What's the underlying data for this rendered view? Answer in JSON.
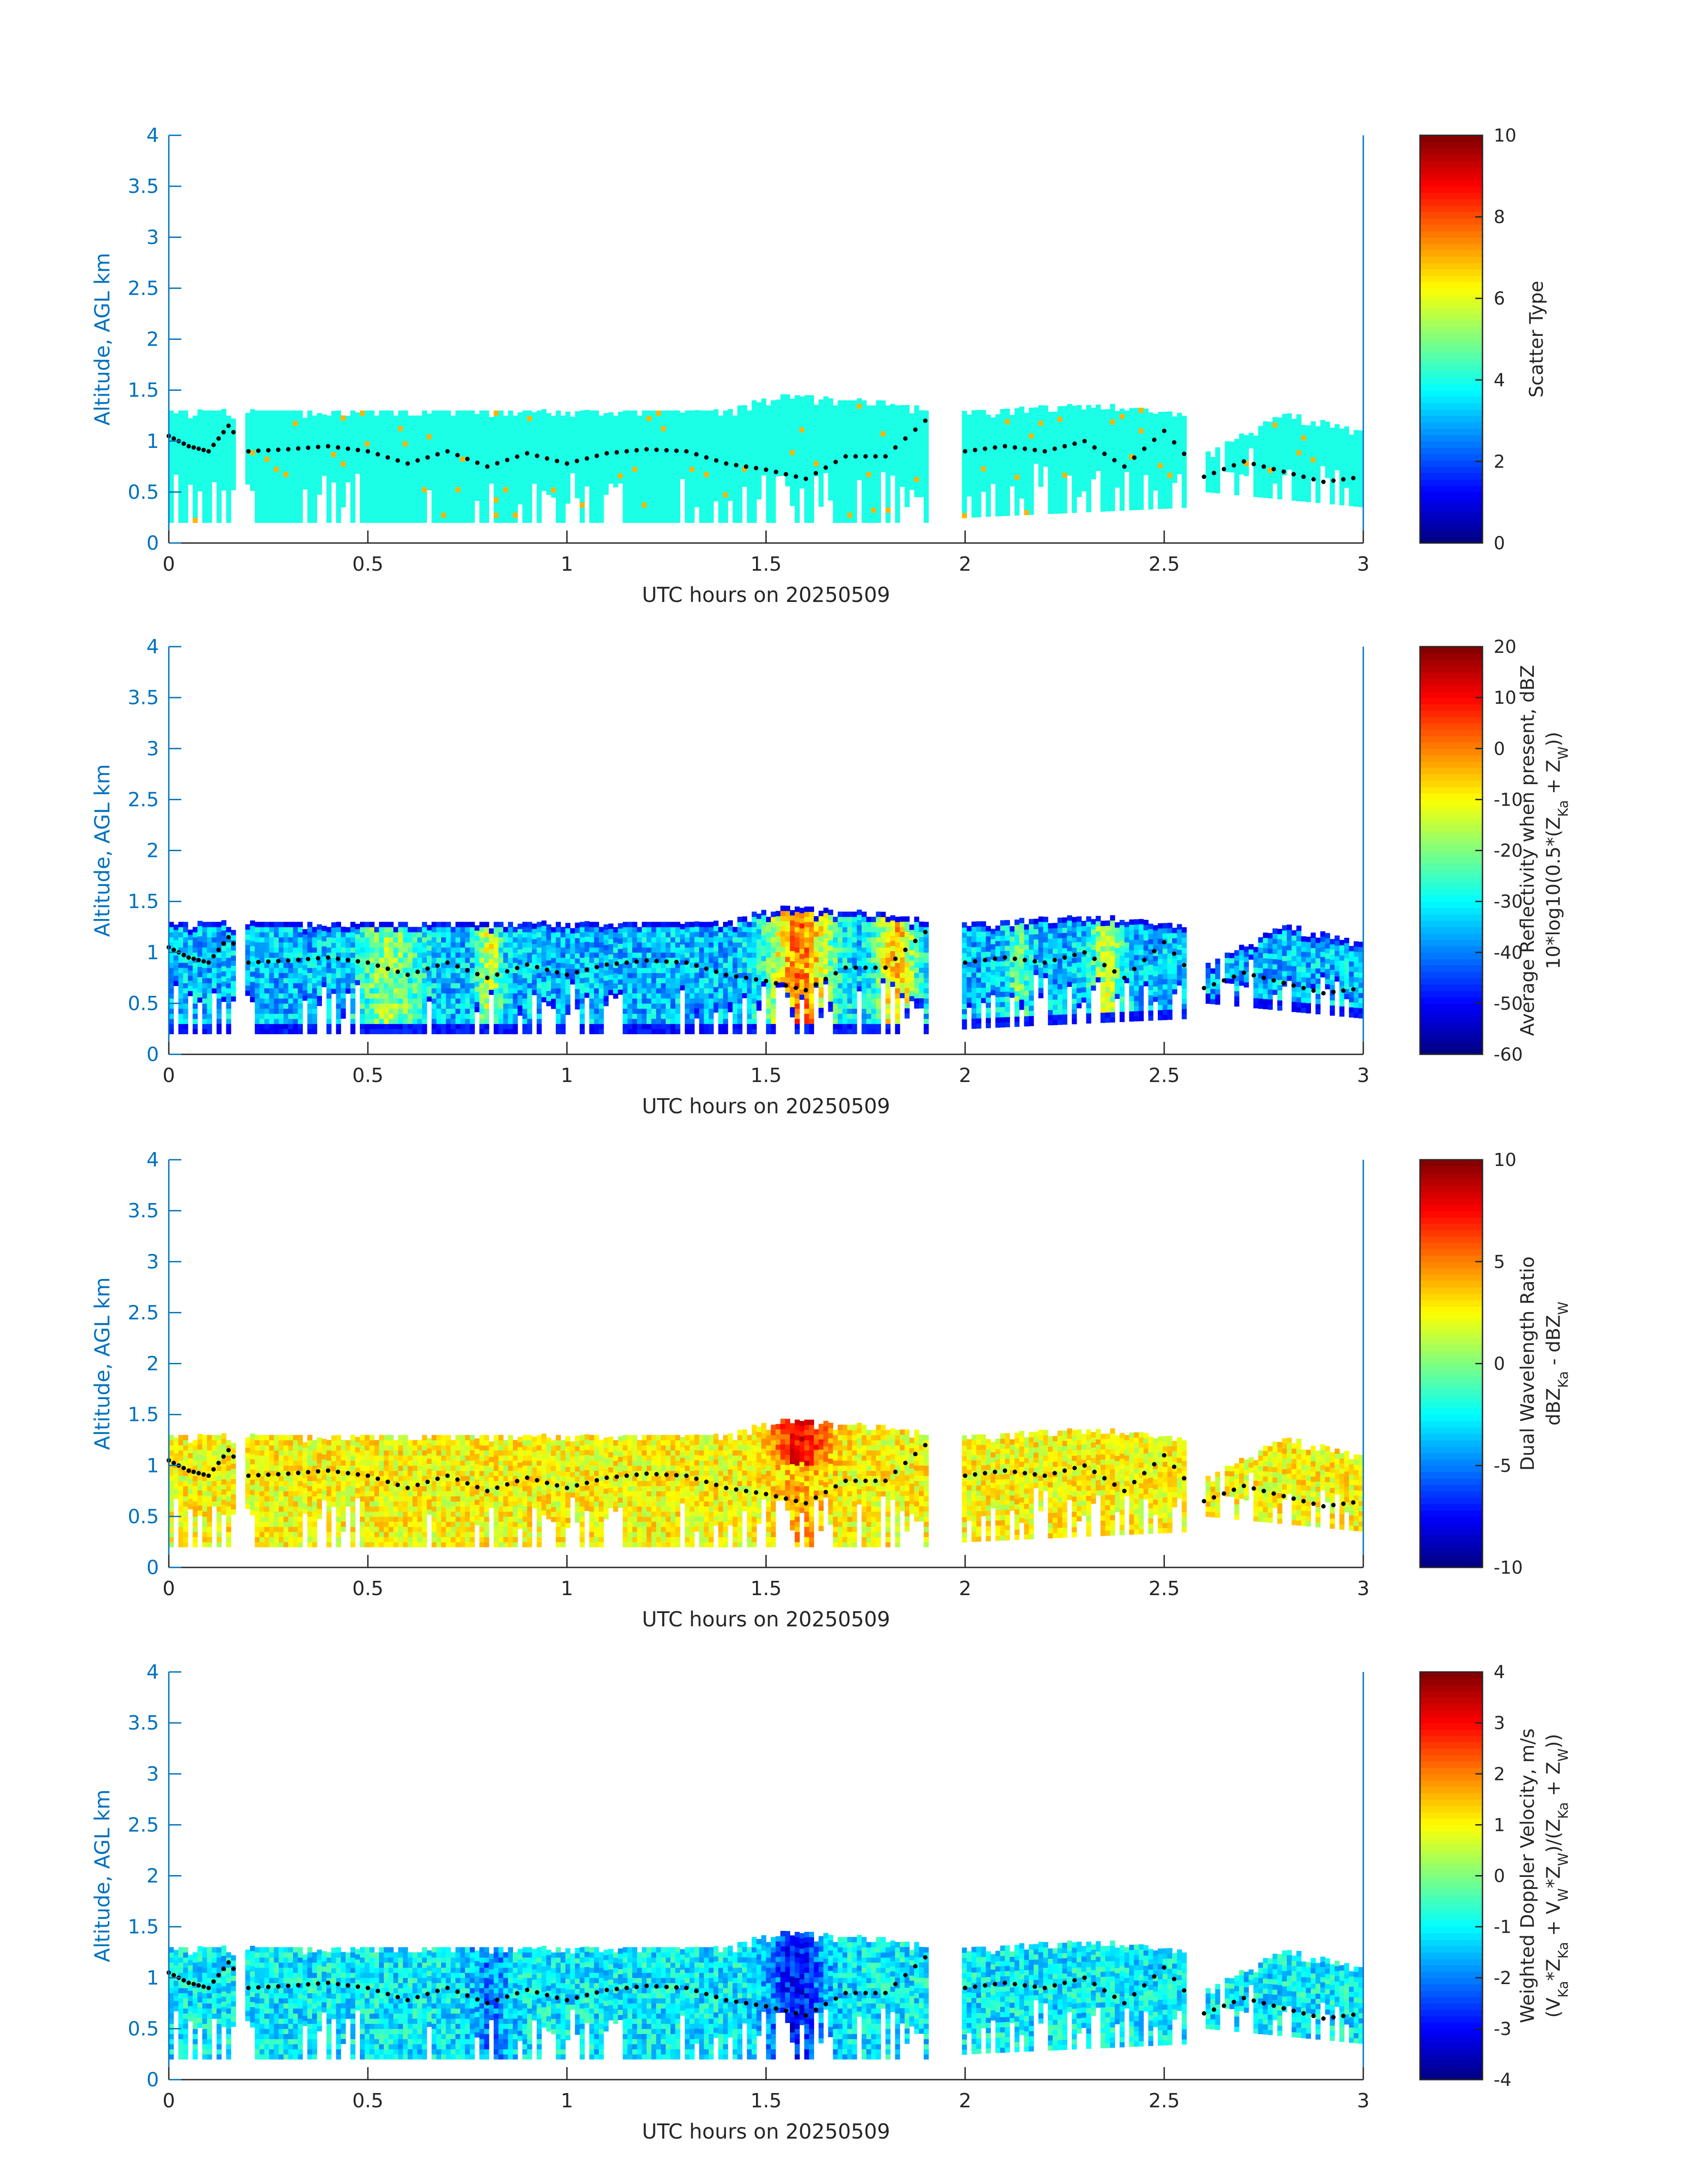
{
  "chart_data": [
    {
      "type": "heatmap",
      "xlabel": "UTC hours on 20250509",
      "ylabel": "Altitude, AGL km",
      "xlim": [
        0,
        3
      ],
      "ylim": [
        0,
        4
      ],
      "xticks": [
        "0",
        "0.5",
        "1",
        "1.5",
        "2",
        "2.5",
        "3"
      ],
      "yticks": [
        "0",
        "0.5",
        "1",
        "1.5",
        "2",
        "2.5",
        "3",
        "3.5",
        "4"
      ],
      "colorbar": {
        "label_lines": [
          "Scatter Type"
        ],
        "range": [
          0,
          10
        ],
        "ticks": [
          "0",
          "2",
          "4",
          "6",
          "8",
          "10"
        ]
      },
      "colormap": "jet",
      "field": "scatter"
    },
    {
      "type": "heatmap",
      "xlabel": "UTC hours on 20250509",
      "ylabel": "Altitude, AGL km",
      "xlim": [
        0,
        3
      ],
      "ylim": [
        0,
        4
      ],
      "xticks": [
        "0",
        "0.5",
        "1",
        "1.5",
        "2",
        "2.5",
        "3"
      ],
      "yticks": [
        "0",
        "0.5",
        "1",
        "1.5",
        "2",
        "2.5",
        "3",
        "3.5",
        "4"
      ],
      "colorbar": {
        "label_lines": [
          "Average Reflectivity when present, dBZ",
          "10*log10(0.5*(Z_Ka + Z_W))"
        ],
        "range": [
          -60,
          20
        ],
        "ticks": [
          "-60",
          "-50",
          "-40",
          "-30",
          "-20",
          "-10",
          "0",
          "10",
          "20"
        ]
      },
      "colormap": "jet",
      "field": "reflectivity"
    },
    {
      "type": "heatmap",
      "xlabel": "UTC hours on 20250509",
      "ylabel": "Altitude, AGL km",
      "xlim": [
        0,
        3
      ],
      "ylim": [
        0,
        4
      ],
      "xticks": [
        "0",
        "0.5",
        "1",
        "1.5",
        "2",
        "2.5",
        "3"
      ],
      "yticks": [
        "0",
        "0.5",
        "1",
        "1.5",
        "2",
        "2.5",
        "3",
        "3.5",
        "4"
      ],
      "colorbar": {
        "label_lines": [
          "Dual Wavelength Ratio",
          "dBZ_Ka - dBZ_W"
        ],
        "range": [
          -10,
          10
        ],
        "ticks": [
          "-10",
          "-5",
          "0",
          "5",
          "10"
        ]
      },
      "colormap": "jet",
      "field": "dwr"
    },
    {
      "type": "heatmap",
      "xlabel": "UTC hours on 20250509",
      "ylabel": "Altitude, AGL km",
      "xlim": [
        0,
        3
      ],
      "ylim": [
        0,
        4
      ],
      "xticks": [
        "0",
        "0.5",
        "1",
        "1.5",
        "2",
        "2.5",
        "3"
      ],
      "yticks": [
        "0",
        "0.5",
        "1",
        "1.5",
        "2",
        "2.5",
        "3",
        "3.5",
        "4"
      ],
      "colorbar": {
        "label_lines": [
          "Weighted Doppler Velocity, m/s",
          "(V_Ka*Z_Ka + V_W*Z_W)/(Z_Ka + Z_W))"
        ],
        "range": [
          -4,
          4
        ],
        "ticks": [
          "-4",
          "-3",
          "-2",
          "-1",
          "0",
          "1",
          "2",
          "3",
          "4"
        ]
      },
      "colormap": "jet",
      "field": "velocity"
    }
  ],
  "cloud_layer": {
    "segments": [
      [
        0,
        0.17
      ],
      [
        0.19,
        1.91
      ],
      [
        1.99,
        2.56
      ],
      [
        2.6,
        3.0
      ]
    ],
    "top_km": [
      [
        0,
        1.27
      ],
      [
        0.5,
        1.27
      ],
      [
        1.0,
        1.27
      ],
      [
        1.4,
        1.27
      ],
      [
        1.52,
        1.42
      ],
      [
        1.72,
        1.38
      ],
      [
        1.9,
        1.3
      ],
      [
        2.0,
        1.25
      ],
      [
        2.3,
        1.35
      ],
      [
        2.55,
        1.22
      ],
      [
        2.6,
        0.85
      ],
      [
        2.8,
        1.25
      ],
      [
        3.0,
        1.05
      ]
    ],
    "base_km": [
      [
        0,
        0.2
      ],
      [
        1.9,
        0.2
      ],
      [
        2.0,
        0.25
      ],
      [
        2.56,
        0.35
      ],
      [
        2.6,
        0.5
      ],
      [
        3.0,
        0.35
      ]
    ]
  },
  "dotted_line": {
    "x": [
      0.0,
      0.05,
      0.1,
      0.15,
      0.2,
      0.3,
      0.4,
      0.5,
      0.6,
      0.7,
      0.8,
      0.9,
      1.0,
      1.1,
      1.2,
      1.3,
      1.4,
      1.5,
      1.6,
      1.7,
      1.8,
      1.9,
      2.0,
      2.1,
      2.2,
      2.3,
      2.4,
      2.5,
      2.6,
      2.7,
      2.8,
      2.9,
      3.0
    ],
    "y": [
      1.05,
      0.95,
      0.9,
      1.15,
      0.9,
      0.92,
      0.95,
      0.9,
      0.78,
      0.9,
      0.75,
      0.88,
      0.78,
      0.88,
      0.92,
      0.9,
      0.78,
      0.72,
      0.63,
      0.85,
      0.85,
      1.2,
      0.9,
      0.95,
      0.9,
      1.0,
      0.75,
      1.1,
      0.65,
      0.8,
      0.7,
      0.6,
      0.65
    ]
  }
}
